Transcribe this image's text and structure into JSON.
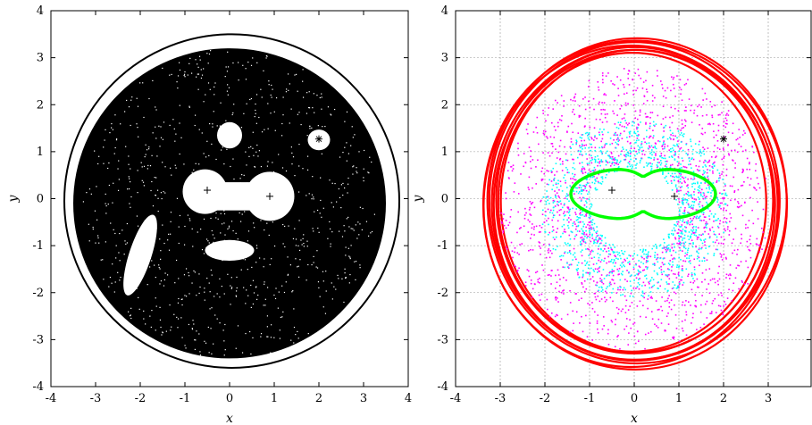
{
  "chart_data": [
    {
      "type": "scatter",
      "title": "",
      "xlabel": "x",
      "ylabel": "y",
      "xlim": [
        -4,
        4
      ],
      "ylim": [
        -4,
        4
      ],
      "xticks": [
        "-4",
        "-3",
        "-2",
        "-1",
        "0",
        "1",
        "2",
        "3",
        "4"
      ],
      "yticks": [
        "-4",
        "-3",
        "-2",
        "-1",
        "0",
        "1",
        "2",
        "3",
        "4"
      ],
      "grid": false,
      "background_color": "#000000",
      "outer_region": {
        "center": [
          0.0,
          -0.1
        ],
        "rx": 3.5,
        "ry": 3.3
      },
      "islands": [
        {
          "center": [
            0.0,
            1.35
          ],
          "rx": 0.28,
          "ry": 0.28
        },
        {
          "center": [
            2.0,
            1.25
          ],
          "rx": 0.25,
          "ry": 0.22
        },
        {
          "center": [
            0.0,
            -1.1
          ],
          "rx": 0.55,
          "ry": 0.22
        },
        {
          "center": [
            -2.0,
            -1.2
          ],
          "rx": 0.25,
          "ry": 0.9
        }
      ],
      "central_island": {
        "lobes": [
          {
            "center": [
              -0.55,
              0.15
            ],
            "r": 0.5
          },
          {
            "center": [
              0.9,
              0.05
            ],
            "r": 0.55
          }
        ]
      },
      "markers": [
        {
          "symbol": "+",
          "x": -0.5,
          "y": 0.18
        },
        {
          "symbol": "+",
          "x": 0.9,
          "y": 0.05
        },
        {
          "symbol": "*",
          "x": 2.0,
          "y": 1.27
        }
      ]
    },
    {
      "type": "scatter",
      "title": "",
      "xlabel": "x",
      "ylabel": "y",
      "xlim": [
        -4,
        4
      ],
      "ylim": [
        -4,
        4
      ],
      "xticks": [
        "-4",
        "-3",
        "-2",
        "-1",
        "0",
        "1",
        "2",
        "3",
        "4"
      ],
      "yticks": [
        "-4",
        "-3",
        "-2",
        "-1",
        "0",
        "1",
        "2",
        "3",
        "4"
      ],
      "grid": true,
      "series": [
        {
          "color": "#ff0000",
          "shape": "outer ring",
          "center": [
            0.0,
            -0.1
          ],
          "rx": 3.4,
          "ry": 3.5
        },
        {
          "color": "#ff00ff",
          "shape": "scattered annulus",
          "center": [
            0.0,
            -0.2
          ],
          "r_min": 1.0,
          "r_max": 3.0
        },
        {
          "color": "#00ffff",
          "shape": "scattered annulus",
          "center": [
            0.0,
            -0.2
          ],
          "r_min": 0.9,
          "r_max": 2.0
        },
        {
          "color": "#00ff00",
          "shape": "figure-eight curve",
          "center": [
            0.2,
            0.1
          ],
          "rx": 1.2,
          "ry": 0.6
        }
      ],
      "markers": [
        {
          "symbol": "+",
          "x": -0.5,
          "y": 0.18
        },
        {
          "symbol": "+",
          "x": 0.9,
          "y": 0.05
        },
        {
          "symbol": "*",
          "x": 2.0,
          "y": 1.27
        }
      ]
    }
  ]
}
